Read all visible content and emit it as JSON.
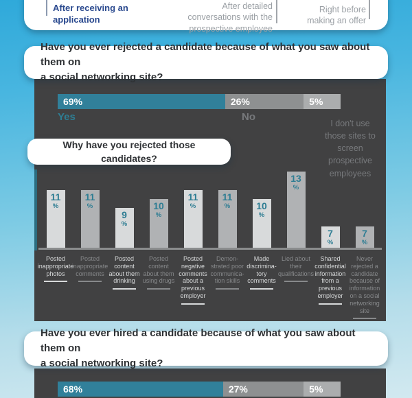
{
  "timing_selector": {
    "options": [
      {
        "label": "After receiving an\napplication",
        "highlighted": true
      },
      {
        "label": "After detailed\nconversations with the\nprospective employee",
        "highlighted": false
      },
      {
        "label": "Right before\nmaking an offer",
        "highlighted": false
      }
    ]
  },
  "chart_data": [
    {
      "id": "rejected-candidate",
      "type": "bar",
      "variant": "horizontal-stacked",
      "title": "Have you ever rejected a candidate because of what you saw about them on\na social networking site?",
      "categories": [
        "Yes",
        "No",
        "I don't use those sites to screen prospective employees"
      ],
      "values": [
        69,
        26,
        5
      ],
      "value_labels": [
        "69%",
        "26%",
        "5%"
      ],
      "unit": "%"
    },
    {
      "id": "rejection-reasons",
      "type": "bar",
      "variant": "vertical",
      "title": "Why have you rejected those candidates?",
      "unit": "%",
      "values": [
        11,
        11,
        9,
        10,
        11,
        11,
        10,
        13,
        7,
        7
      ],
      "categories": [
        "Posted inappropriate photos",
        "Posted inappropriate comments",
        "Posted content about them drinking",
        "Posted content about them using drugs",
        "Posted negative comments about a previous employer",
        "Demonstrated poor communication skills",
        "Made discriminatory comments",
        "Lied about their qualifications",
        "Shared confidential information from a previous employer",
        "Never rejected a candidate because of information on a social networking site"
      ],
      "category_display": [
        "Posted\ninappropriate\nphotos",
        "Posted\ninappropriate\ncomments",
        "Posted\ncontent\nabout them\ndrinking",
        "Posted\ncontent\nabout them\nusing drugs",
        "Posted\nnegative\ncomments\nabout a\nprevious\nemployer",
        "Demon-\nstrated poor\ncommunica-\ntion skills",
        "Made\ndiscrimina-\ntory\ncomments",
        "Lied about\ntheir\nqualifications",
        "Shared\nconfidential\ninformation\nfrom a\nprevious\nemployer",
        "Never\nrejected a\ncandidate\nbecause of\ninformation\non a social\nnetworking\nsite"
      ],
      "axis": "none",
      "legend": "none"
    },
    {
      "id": "hired-candidate",
      "type": "bar",
      "variant": "horizontal-stacked",
      "title": "Have you ever hired a candidate because of what you saw about them on\na social networking site?",
      "values": [
        68,
        27,
        5
      ],
      "value_labels": [
        "68%",
        "27%",
        "5%"
      ],
      "unit": "%"
    }
  ],
  "colors": {
    "background_top": "#2fa9da",
    "background_bottom": "#d2e9f0",
    "panel_dark": "#414142",
    "accent_teal": "#31809a",
    "teal_text": "#2e7e94",
    "segment_no_gray": "#8e9091",
    "segment_idk_gray": "#abadae",
    "bar_light": "#d8dadb",
    "bar_gray": "#b0b2b4",
    "category_bright": "#d8dadb",
    "category_dim": "#87898b",
    "highlight_navy": "#2b4a8f",
    "option_gray": "#9ba0a5",
    "question_text": "#2f3235"
  }
}
